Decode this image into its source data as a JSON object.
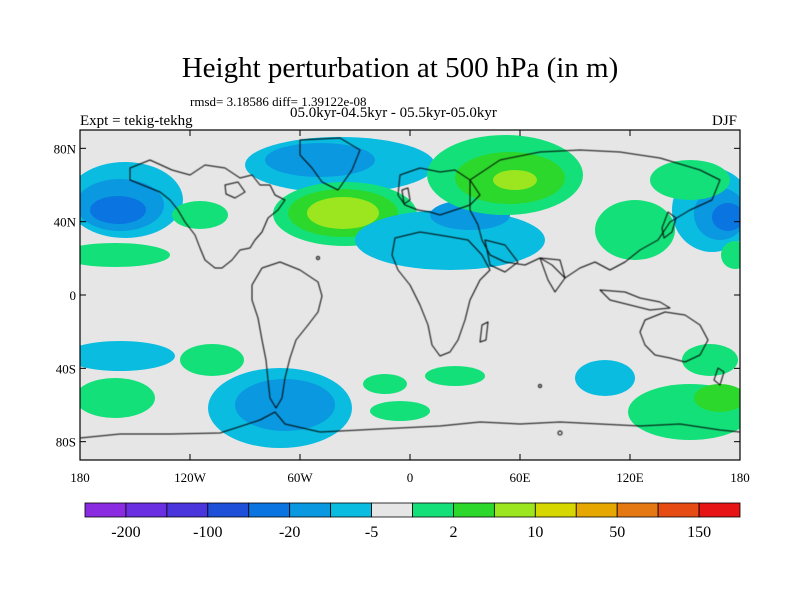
{
  "title": "Height perturbation at 500 hPa (in m)",
  "stats": "rmsd= 3.18586 diff= 1.39122e-08",
  "subtitle": "05.0kyr-04.5kyr - 05.5kyr-05.0kyr",
  "left_label": "Expt = tekig-tekhg",
  "right_label": "DJF",
  "map": {
    "background_color": "#e6e6e6",
    "lat_labels": [
      "80N",
      "40N",
      "0",
      "40S",
      "80S"
    ],
    "lon_labels": [
      "180",
      "120W",
      "60W",
      "0",
      "60E",
      "120E",
      "180"
    ]
  },
  "colorbar": {
    "colors": [
      "#8a2be2",
      "#6a2fe0",
      "#4a35dc",
      "#1e4fd8",
      "#0a74e0",
      "#0a98e0",
      "#0abce0",
      "#e6e6e6",
      "#14e07a",
      "#2cd82c",
      "#9be61e",
      "#d7d700",
      "#e6a800",
      "#e67814",
      "#e64b14",
      "#e61414"
    ],
    "labels": [
      "-200",
      "-100",
      "-20",
      "-5",
      "2",
      "10",
      "50",
      "150"
    ]
  }
}
